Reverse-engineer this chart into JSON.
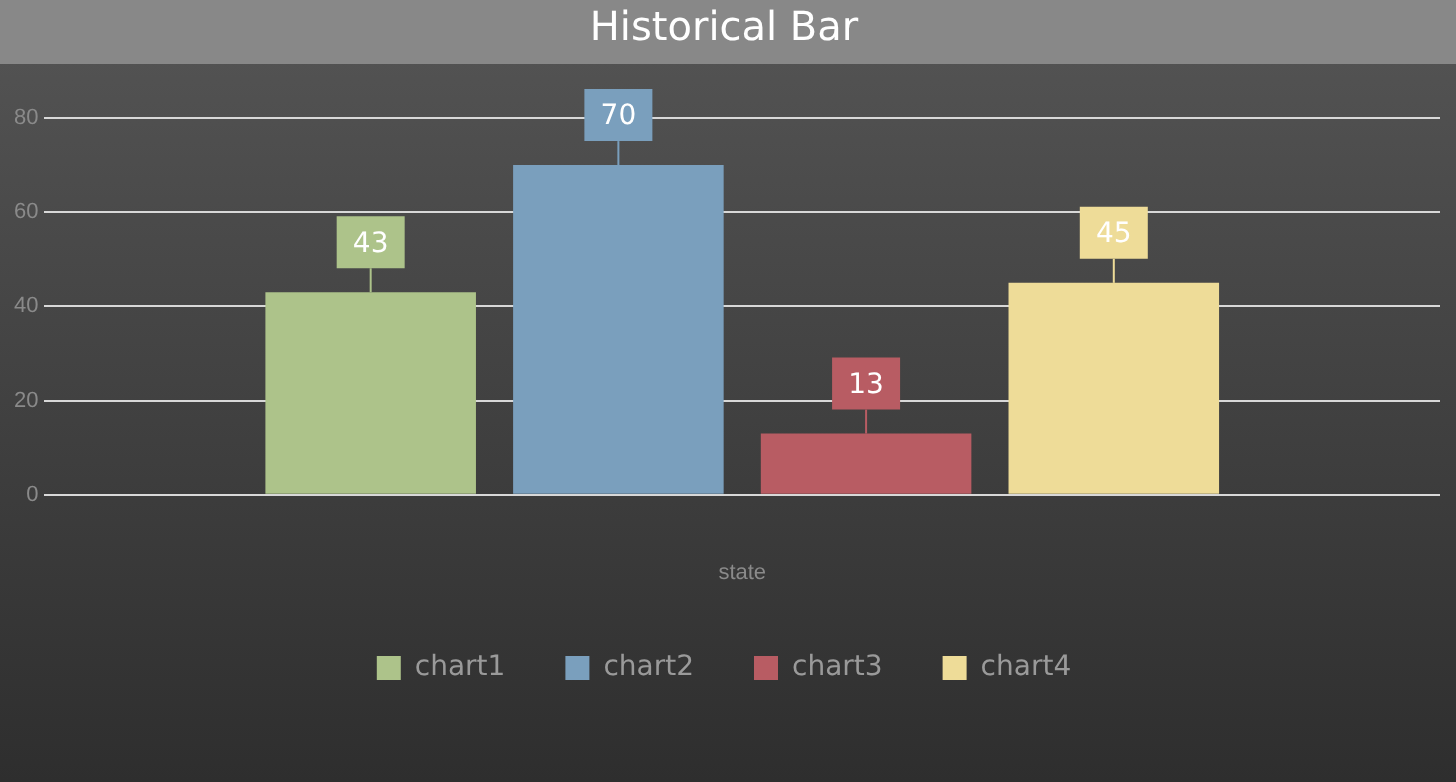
{
  "chart_data": {
    "type": "bar",
    "title": "Historical Bar",
    "xlabel": "state",
    "categories": [
      null
    ],
    "series": [
      {
        "name": "chart1",
        "color": "#adc38a",
        "values": [
          43
        ]
      },
      {
        "name": "chart2",
        "color": "#7a9fbd",
        "values": [
          70
        ]
      },
      {
        "name": "chart3",
        "color": "#b85c63",
        "values": [
          13
        ]
      },
      {
        "name": "chart4",
        "color": "#eedc98",
        "values": [
          45
        ]
      }
    ],
    "ylim": [
      0,
      80
    ],
    "yticks": [
      0,
      20,
      40,
      60,
      80
    ],
    "grid": "y",
    "legend": "bottom",
    "data_labels": true
  }
}
